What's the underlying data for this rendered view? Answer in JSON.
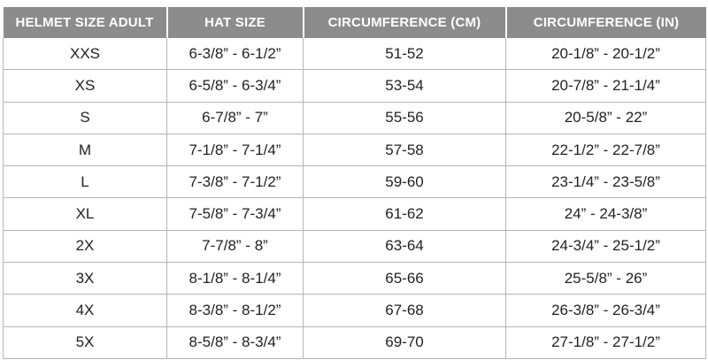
{
  "table": {
    "header": [
      "HELMET SIZE ADULT",
      "HAT SIZE",
      "CIRCUMFERENCE (CM)",
      "CIRCUMFERENCE (IN)"
    ],
    "rows": [
      [
        "XXS",
        "6-3/8” - 6-1/2”",
        "51-52",
        "20-1/8” - 20-1/2”"
      ],
      [
        "XS",
        "6-5/8” - 6-3/4”",
        "53-54",
        "20-7/8” - 21-1/4”"
      ],
      [
        "S",
        "6-7/8” - 7”",
        "55-56",
        "20-5/8” - 22”"
      ],
      [
        "M",
        "7-1/8” - 7-1/4”",
        "57-58",
        "22-1/2” - 22-7/8”"
      ],
      [
        "L",
        "7-3/8” - 7-1/2”",
        "59-60",
        "23-1/4” - 23-5/8”"
      ],
      [
        "XL",
        "7-5/8” - 7-3/4”",
        "61-62",
        "24” - 24-3/8”"
      ],
      [
        "2X",
        "7-7/8” - 8”",
        "63-64",
        "24-3/4” - 25-1/2”"
      ],
      [
        "3X",
        "8-1/8” - 8-1/4”",
        "65-66",
        "25-5/8” - 26”"
      ],
      [
        "4X",
        "8-3/8” - 8-1/2”",
        "67-68",
        "26-3/8” - 26-3/4”"
      ],
      [
        "5X",
        "8-5/8” - 8-3/4”",
        "69-70",
        "27-1/8” - 27-1/2”"
      ]
    ]
  }
}
